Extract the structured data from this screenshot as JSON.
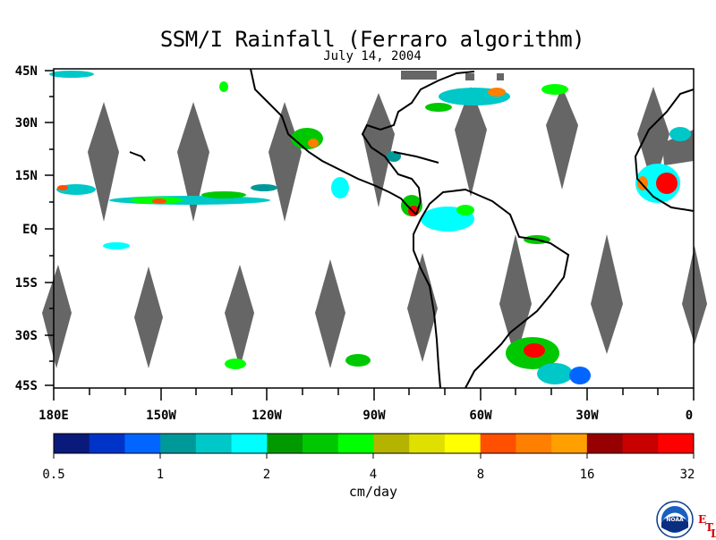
{
  "header": {
    "title": "SSM/I Rainfall (Ferraro algorithm)",
    "date": "July 14, 2004"
  },
  "map": {
    "lat_labels": [
      "45N",
      "30N",
      "15N",
      "EQ",
      "15S",
      "30S",
      "45S"
    ],
    "lon_labels": [
      "180E",
      "150W",
      "120W",
      "90W",
      "60W",
      "30W",
      "0"
    ],
    "lat_range": [
      -45,
      45
    ],
    "lon_range": [
      -180,
      0
    ],
    "no_data_color": "#666666",
    "coastline_color": "#000000"
  },
  "colorbar": {
    "units": "cm/day",
    "tick_labels": [
      "0.5",
      "1",
      "2",
      "4",
      "8",
      "16",
      "32"
    ],
    "colors": [
      "#0a1a7a",
      "#0033c8",
      "#0066ff",
      "#009999",
      "#00c8c8",
      "#00ffff",
      "#009900",
      "#00c800",
      "#00ff00",
      "#b4b400",
      "#e0e000",
      "#ffff00",
      "#ff5000",
      "#ff7f00",
      "#ffa000",
      "#960000",
      "#c80000",
      "#ff0000"
    ]
  },
  "footer": {
    "logo_label": "NOAA",
    "lab_letters": [
      "E",
      "T",
      "L"
    ]
  }
}
